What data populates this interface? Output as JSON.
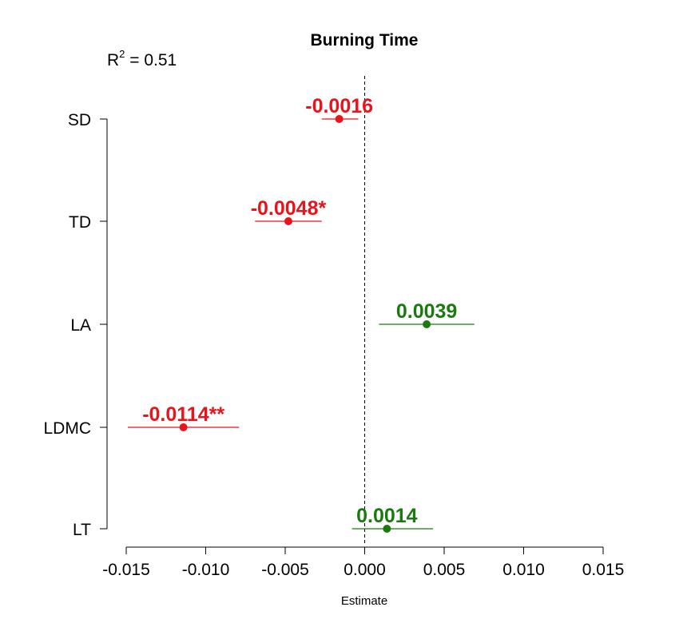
{
  "colors": {
    "negative": "#e8141c",
    "positive": "#1a7a0f",
    "axis": "#000000",
    "reference_line": "#000000"
  },
  "chart_data": {
    "type": "scatter",
    "subtype": "coefficient-plot",
    "title": "Burning Time",
    "annotation": {
      "prefix": "R",
      "superscript": "2",
      "suffix": " = 0.51"
    },
    "xlabel": "Estimate",
    "ylabel": "",
    "xlim": [
      -0.015,
      0.015
    ],
    "x_ticks": [
      "-0.015",
      "-0.010",
      "-0.005",
      "0.000",
      "0.005",
      "0.010",
      "0.015"
    ],
    "x_tick_values": [
      -0.015,
      -0.01,
      -0.005,
      0.0,
      0.005,
      0.01,
      0.015
    ],
    "reference_line": {
      "x": 0,
      "style": "dashed"
    },
    "grid": false,
    "legend": "none",
    "points": [
      {
        "category": "SD",
        "estimate": -0.0016,
        "ci": [
          -0.0027,
          -0.0004
        ],
        "label": "-0.0016",
        "sign": "negative"
      },
      {
        "category": "TD",
        "estimate": -0.0048,
        "ci": [
          -0.0069,
          -0.0027
        ],
        "label": "-0.0048*",
        "sign": "negative"
      },
      {
        "category": "LA",
        "estimate": 0.0039,
        "ci": [
          0.0009,
          0.0069
        ],
        "label": "0.0039",
        "sign": "positive"
      },
      {
        "category": "LDMC",
        "estimate": -0.0114,
        "ci": [
          -0.0149,
          -0.0079
        ],
        "label": "-0.0114**",
        "sign": "negative"
      },
      {
        "category": "LT",
        "estimate": 0.0014,
        "ci": [
          -0.0008,
          0.0043
        ],
        "label": "0.0014",
        "sign": "positive"
      }
    ]
  }
}
